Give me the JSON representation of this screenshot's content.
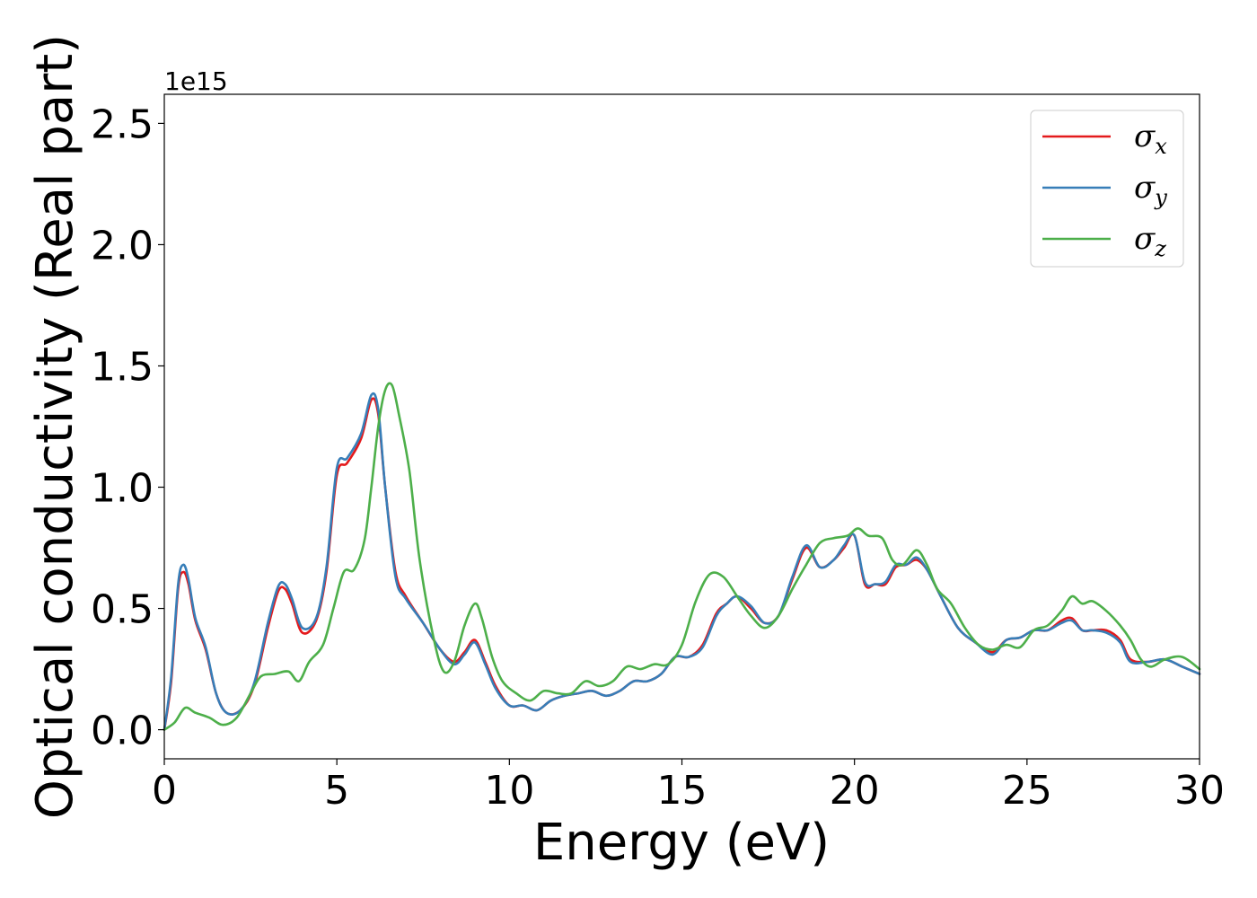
{
  "chart_data": {
    "type": "line",
    "xlabel": "Energy (eV)",
    "ylabel": "Optical conductivity (Real part)",
    "y_offset_text": "1e15",
    "xlim": [
      0,
      30
    ],
    "ylim": [
      -0.12,
      2.62
    ],
    "x_ticks": [
      0,
      5,
      10,
      15,
      20,
      25,
      30
    ],
    "x_tick_labels": [
      "0",
      "5",
      "10",
      "15",
      "20",
      "25",
      "30"
    ],
    "y_ticks": [
      0.0,
      0.5,
      1.0,
      1.5,
      2.0,
      2.5
    ],
    "y_tick_labels": [
      "0.0",
      "0.5",
      "1.0",
      "1.5",
      "2.0",
      "2.5"
    ],
    "grid": false,
    "legend_position": "top-right",
    "series": [
      {
        "name": "x",
        "color": "#e41a1c",
        "x": [
          0,
          0.2,
          0.4,
          0.55,
          0.7,
          0.9,
          1.2,
          1.5,
          1.8,
          2.2,
          2.6,
          3.0,
          3.3,
          3.5,
          3.7,
          4.0,
          4.4,
          4.7,
          5.0,
          5.3,
          5.7,
          6.0,
          6.2,
          6.4,
          6.7,
          7.0,
          7.5,
          8.0,
          8.4,
          8.7,
          9.0,
          9.3,
          9.6,
          10.0,
          10.4,
          10.8,
          11.2,
          11.6,
          12.0,
          12.4,
          12.8,
          13.2,
          13.6,
          14.0,
          14.4,
          14.8,
          15.2,
          15.6,
          16.0,
          16.3,
          16.6,
          17.0,
          17.4,
          17.8,
          18.2,
          18.6,
          19.0,
          19.4,
          19.7,
          20.0,
          20.3,
          20.6,
          20.9,
          21.2,
          21.5,
          21.8,
          22.1,
          22.5,
          23.0,
          23.5,
          24.0,
          24.4,
          24.8,
          25.2,
          25.6,
          26.0,
          26.3,
          26.6,
          26.9,
          27.3,
          27.7,
          28.0,
          28.5,
          29.0,
          29.5,
          30.0
        ],
        "values": [
          0.0,
          0.2,
          0.58,
          0.65,
          0.6,
          0.45,
          0.33,
          0.15,
          0.07,
          0.08,
          0.18,
          0.42,
          0.57,
          0.58,
          0.52,
          0.4,
          0.45,
          0.65,
          1.05,
          1.1,
          1.2,
          1.36,
          1.3,
          1.0,
          0.65,
          0.55,
          0.44,
          0.33,
          0.28,
          0.32,
          0.37,
          0.28,
          0.18,
          0.1,
          0.1,
          0.08,
          0.12,
          0.14,
          0.15,
          0.16,
          0.14,
          0.16,
          0.2,
          0.2,
          0.23,
          0.3,
          0.3,
          0.35,
          0.48,
          0.52,
          0.55,
          0.5,
          0.44,
          0.47,
          0.62,
          0.75,
          0.67,
          0.7,
          0.75,
          0.8,
          0.6,
          0.6,
          0.6,
          0.67,
          0.68,
          0.7,
          0.66,
          0.55,
          0.42,
          0.36,
          0.32,
          0.37,
          0.38,
          0.41,
          0.41,
          0.45,
          0.46,
          0.41,
          0.41,
          0.41,
          0.37,
          0.29,
          0.28,
          0.29,
          0.26,
          0.23
        ]
      },
      {
        "name": "y",
        "color": "#377eb8",
        "x": [
          0,
          0.2,
          0.4,
          0.55,
          0.7,
          0.9,
          1.2,
          1.5,
          1.8,
          2.2,
          2.6,
          3.0,
          3.3,
          3.5,
          3.7,
          4.0,
          4.4,
          4.7,
          5.0,
          5.3,
          5.7,
          6.0,
          6.2,
          6.4,
          6.7,
          7.0,
          7.5,
          8.0,
          8.4,
          8.7,
          9.0,
          9.3,
          9.6,
          10.0,
          10.4,
          10.8,
          11.2,
          11.6,
          12.0,
          12.4,
          12.8,
          13.2,
          13.6,
          14.0,
          14.4,
          14.8,
          15.2,
          15.6,
          16.0,
          16.3,
          16.6,
          17.0,
          17.4,
          17.8,
          18.2,
          18.6,
          19.0,
          19.4,
          19.7,
          20.0,
          20.3,
          20.6,
          20.9,
          21.2,
          21.5,
          21.8,
          22.1,
          22.5,
          23.0,
          23.5,
          24.0,
          24.4,
          24.8,
          25.2,
          25.6,
          26.0,
          26.3,
          26.6,
          26.9,
          27.3,
          27.7,
          28.0,
          28.5,
          29.0,
          29.5,
          30.0
        ],
        "values": [
          0.0,
          0.22,
          0.6,
          0.68,
          0.62,
          0.46,
          0.34,
          0.15,
          0.07,
          0.08,
          0.19,
          0.44,
          0.59,
          0.6,
          0.54,
          0.42,
          0.46,
          0.67,
          1.08,
          1.12,
          1.22,
          1.38,
          1.32,
          1.0,
          0.63,
          0.54,
          0.44,
          0.33,
          0.27,
          0.31,
          0.36,
          0.27,
          0.17,
          0.1,
          0.1,
          0.08,
          0.12,
          0.14,
          0.15,
          0.16,
          0.14,
          0.16,
          0.2,
          0.2,
          0.23,
          0.3,
          0.3,
          0.34,
          0.47,
          0.52,
          0.55,
          0.51,
          0.44,
          0.47,
          0.63,
          0.76,
          0.67,
          0.7,
          0.76,
          0.8,
          0.61,
          0.6,
          0.61,
          0.68,
          0.68,
          0.71,
          0.66,
          0.55,
          0.42,
          0.36,
          0.31,
          0.37,
          0.38,
          0.41,
          0.41,
          0.44,
          0.45,
          0.41,
          0.41,
          0.4,
          0.36,
          0.28,
          0.28,
          0.29,
          0.26,
          0.23
        ]
      },
      {
        "name": "z",
        "color": "#4daf4a",
        "x": [
          0,
          0.3,
          0.6,
          0.9,
          1.3,
          1.7,
          2.1,
          2.5,
          2.8,
          3.2,
          3.6,
          3.9,
          4.2,
          4.6,
          4.9,
          5.2,
          5.5,
          5.8,
          6.0,
          6.2,
          6.4,
          6.6,
          6.8,
          7.1,
          7.4,
          7.8,
          8.1,
          8.4,
          8.7,
          9.0,
          9.2,
          9.5,
          9.8,
          10.2,
          10.6,
          11.0,
          11.4,
          11.8,
          12.2,
          12.6,
          13.0,
          13.4,
          13.8,
          14.2,
          14.6,
          15.0,
          15.4,
          15.8,
          16.2,
          16.6,
          17.0,
          17.4,
          17.8,
          18.2,
          18.6,
          19.0,
          19.4,
          19.8,
          20.1,
          20.4,
          20.8,
          21.1,
          21.4,
          21.8,
          22.1,
          22.4,
          22.8,
          23.2,
          23.6,
          24.0,
          24.4,
          24.8,
          25.2,
          25.6,
          26.0,
          26.3,
          26.6,
          26.9,
          27.3,
          27.7,
          28.0,
          28.3,
          28.6,
          29.0,
          29.5,
          30.0
        ],
        "values": [
          0.0,
          0.03,
          0.09,
          0.07,
          0.05,
          0.02,
          0.05,
          0.15,
          0.22,
          0.23,
          0.24,
          0.2,
          0.28,
          0.35,
          0.5,
          0.65,
          0.66,
          0.78,
          1.0,
          1.25,
          1.4,
          1.42,
          1.3,
          1.07,
          0.7,
          0.38,
          0.24,
          0.28,
          0.43,
          0.52,
          0.46,
          0.3,
          0.2,
          0.15,
          0.12,
          0.16,
          0.15,
          0.15,
          0.2,
          0.18,
          0.2,
          0.26,
          0.25,
          0.27,
          0.27,
          0.35,
          0.53,
          0.64,
          0.63,
          0.55,
          0.47,
          0.42,
          0.47,
          0.58,
          0.68,
          0.77,
          0.79,
          0.8,
          0.83,
          0.8,
          0.79,
          0.7,
          0.68,
          0.74,
          0.68,
          0.58,
          0.52,
          0.42,
          0.35,
          0.33,
          0.35,
          0.34,
          0.41,
          0.43,
          0.49,
          0.55,
          0.52,
          0.53,
          0.49,
          0.43,
          0.37,
          0.29,
          0.26,
          0.29,
          0.3,
          0.25
        ]
      }
    ]
  }
}
